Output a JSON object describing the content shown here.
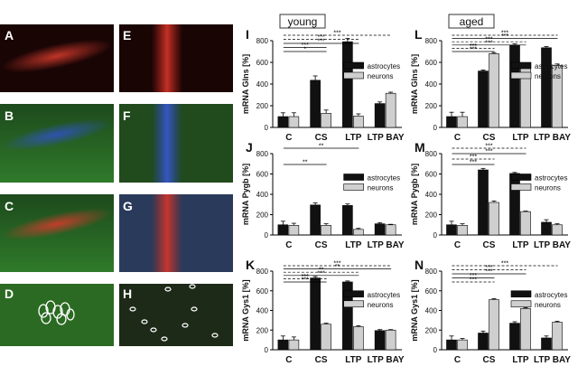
{
  "micrographs": {
    "A": "A",
    "B": "B",
    "C": "C",
    "D": "D",
    "E": "E",
    "F": "F",
    "G": "G",
    "H": "H"
  },
  "chart_data": [
    {
      "id": "I",
      "panel_label": "I",
      "group": "young",
      "type": "bar",
      "ylabel": "mRNA Glns [%]",
      "ylim": [
        0,
        800
      ],
      "yticks": [
        0,
        200,
        400,
        600,
        800
      ],
      "categories": [
        "C",
        "CS",
        "LTP",
        "LTP BAY"
      ],
      "legend": [
        "astrocytes",
        "neurons"
      ],
      "series": [
        {
          "name": "astrocytes",
          "values": [
            100,
            435,
            790,
            220
          ],
          "errors": [
            35,
            40,
            30,
            15
          ]
        },
        {
          "name": "neurons",
          "values": [
            100,
            130,
            105,
            315
          ],
          "errors": [
            35,
            30,
            20,
            10
          ]
        }
      ],
      "significance": [
        {
          "from": 0,
          "to": 1,
          "label": "*",
          "style": "solid"
        },
        {
          "from": 0,
          "to": 1,
          "label": "***",
          "style": "solid"
        },
        {
          "from": 0,
          "to": 2,
          "label": "***",
          "style": "solid"
        },
        {
          "from": 0,
          "to": 2,
          "label": "***",
          "style": "dashed"
        },
        {
          "from": 0,
          "to": 3,
          "label": "***",
          "style": "dashed"
        }
      ]
    },
    {
      "id": "L",
      "panel_label": "L",
      "group": "aged",
      "type": "bar",
      "ylabel": "mRNA Glns [%]",
      "ylim": [
        0,
        800
      ],
      "yticks": [
        0,
        200,
        400,
        600,
        800
      ],
      "categories": [
        "C",
        "CS",
        "LTP",
        "LTP BAY"
      ],
      "legend": [
        "astrocytes",
        "neurons"
      ],
      "series": [
        {
          "name": "astrocytes",
          "values": [
            100,
            520,
            760,
            735
          ],
          "errors": [
            40,
            10,
            10,
            10
          ]
        },
        {
          "name": "neurons",
          "values": [
            100,
            680,
            560,
            570
          ],
          "errors": [
            40,
            10,
            10,
            15
          ]
        }
      ],
      "significance": [
        {
          "from": 0,
          "to": 1,
          "label": "***",
          "style": "solid"
        },
        {
          "from": 0,
          "to": 1,
          "label": "***",
          "style": "dashed"
        },
        {
          "from": 0,
          "to": 2,
          "label": "***",
          "style": "solid"
        },
        {
          "from": 0,
          "to": 2,
          "label": "***",
          "style": "dashed"
        },
        {
          "from": 0,
          "to": 3,
          "label": "***",
          "style": "solid"
        },
        {
          "from": 0,
          "to": 3,
          "label": "***",
          "style": "dashed"
        }
      ]
    },
    {
      "id": "J",
      "panel_label": "J",
      "group": "young",
      "type": "bar",
      "ylabel": "mRNA Pygb [%]",
      "ylim": [
        0,
        800
      ],
      "yticks": [
        0,
        200,
        400,
        600,
        800
      ],
      "categories": [
        "C",
        "CS",
        "LTP",
        "LTP BAY"
      ],
      "legend": [
        "astrocytes",
        "neurons"
      ],
      "series": [
        {
          "name": "astrocytes",
          "values": [
            100,
            295,
            290,
            110
          ],
          "errors": [
            35,
            20,
            15,
            10
          ]
        },
        {
          "name": "neurons",
          "values": [
            95,
            95,
            55,
            100
          ],
          "errors": [
            20,
            15,
            10,
            5
          ]
        }
      ],
      "significance": [
        {
          "from": 0,
          "to": 1,
          "label": "**",
          "style": "solid"
        },
        {
          "from": 0,
          "to": 2,
          "label": "**",
          "style": "solid"
        }
      ]
    },
    {
      "id": "M",
      "panel_label": "M",
      "group": "aged",
      "type": "bar",
      "ylabel": "mRNA Pygb [%]",
      "ylim": [
        0,
        800
      ],
      "yticks": [
        0,
        200,
        400,
        600,
        800
      ],
      "categories": [
        "C",
        "CS",
        "LTP",
        "LTP BAY"
      ],
      "legend": [
        "astrocytes",
        "neurons"
      ],
      "series": [
        {
          "name": "astrocytes",
          "values": [
            100,
            640,
            605,
            125
          ],
          "errors": [
            35,
            15,
            10,
            25
          ]
        },
        {
          "name": "neurons",
          "values": [
            95,
            320,
            230,
            100
          ],
          "errors": [
            15,
            15,
            5,
            10
          ]
        }
      ],
      "significance": [
        {
          "from": 0,
          "to": 1,
          "label": "***",
          "style": "solid"
        },
        {
          "from": 0,
          "to": 1,
          "label": "***",
          "style": "dashed"
        },
        {
          "from": 0,
          "to": 2,
          "label": "***",
          "style": "solid"
        },
        {
          "from": 0,
          "to": 2,
          "label": "***",
          "style": "dashed"
        }
      ]
    },
    {
      "id": "K",
      "panel_label": "K",
      "group": "young",
      "type": "bar",
      "ylabel": "mRNA Gys1 [%]",
      "ylim": [
        0,
        800
      ],
      "yticks": [
        0,
        200,
        400,
        600,
        800
      ],
      "categories": [
        "C",
        "CS",
        "LTP",
        "LTP BAY"
      ],
      "legend": [
        "astrocytes",
        "neurons"
      ],
      "series": [
        {
          "name": "astrocytes",
          "values": [
            100,
            730,
            690,
            195
          ],
          "errors": [
            40,
            15,
            10,
            10
          ]
        },
        {
          "name": "neurons",
          "values": [
            100,
            260,
            235,
            200
          ],
          "errors": [
            30,
            10,
            10,
            5
          ]
        }
      ],
      "significance": [
        {
          "from": 0,
          "to": 1,
          "label": "***",
          "style": "solid"
        },
        {
          "from": 0,
          "to": 1,
          "label": "***",
          "style": "dashed"
        },
        {
          "from": 0,
          "to": 2,
          "label": "***",
          "style": "solid"
        },
        {
          "from": 0,
          "to": 2,
          "label": "**",
          "style": "dashed"
        },
        {
          "from": 0,
          "to": 3,
          "label": "**",
          "style": "solid"
        },
        {
          "from": 0,
          "to": 3,
          "label": "***",
          "style": "dashed"
        }
      ]
    },
    {
      "id": "N",
      "panel_label": "N",
      "group": "aged",
      "type": "bar",
      "ylabel": "mRNA Gys1 [%]",
      "ylim": [
        0,
        800
      ],
      "yticks": [
        0,
        200,
        400,
        600,
        800
      ],
      "categories": [
        "C",
        "CS",
        "LTP",
        "LTP BAY"
      ],
      "legend": [
        "astrocytes",
        "neurons"
      ],
      "series": [
        {
          "name": "astrocytes",
          "values": [
            100,
            170,
            270,
            120
          ],
          "errors": [
            40,
            20,
            15,
            20
          ]
        },
        {
          "name": "neurons",
          "values": [
            100,
            510,
            420,
            280
          ],
          "errors": [
            15,
            10,
            8,
            10
          ]
        }
      ],
      "significance": [
        {
          "from": 0,
          "to": 1,
          "label": "***",
          "style": "dashed"
        },
        {
          "from": 0,
          "to": 1,
          "label": "***",
          "style": "solid"
        },
        {
          "from": 0,
          "to": 2,
          "label": "***",
          "style": "solid"
        },
        {
          "from": 0,
          "to": 2,
          "label": "***",
          "style": "dashed"
        },
        {
          "from": 0,
          "to": 3,
          "label": "***",
          "style": "dashed"
        }
      ]
    }
  ]
}
